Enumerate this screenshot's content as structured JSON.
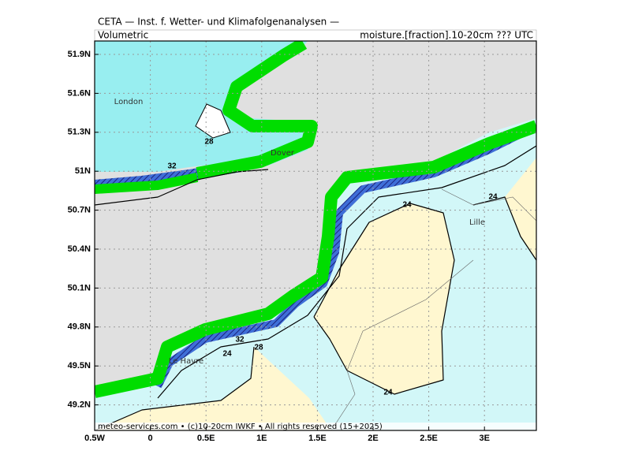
{
  "header": {
    "title": "CETA — Inst. f. Wetter- und Klimafolgenanalysen —",
    "left": "Volumetric",
    "right": "moisture.[fraction].10-20cm ??? UTC"
  },
  "axes": {
    "x_ticks": [
      "0.5W",
      "0",
      "0.5E",
      "1E",
      "1.5E",
      "2E",
      "2.5E",
      "3E"
    ],
    "y_ticks": [
      "51.9N",
      "51.6N",
      "51.3N",
      "51N",
      "50.7N",
      "50.4N",
      "50.1N",
      "49.8N",
      "49.5N",
      "49.2N"
    ]
  },
  "contour_labels": [
    "28",
    "32",
    "24",
    "24",
    "32",
    "28",
    "24",
    "24"
  ],
  "places": [
    "London",
    "Dover",
    "Le Havre",
    "Lille"
  ],
  "footer": "meteo-services.com • (c)10-20cm IWKF • All rights reserved (15+2025)"
}
